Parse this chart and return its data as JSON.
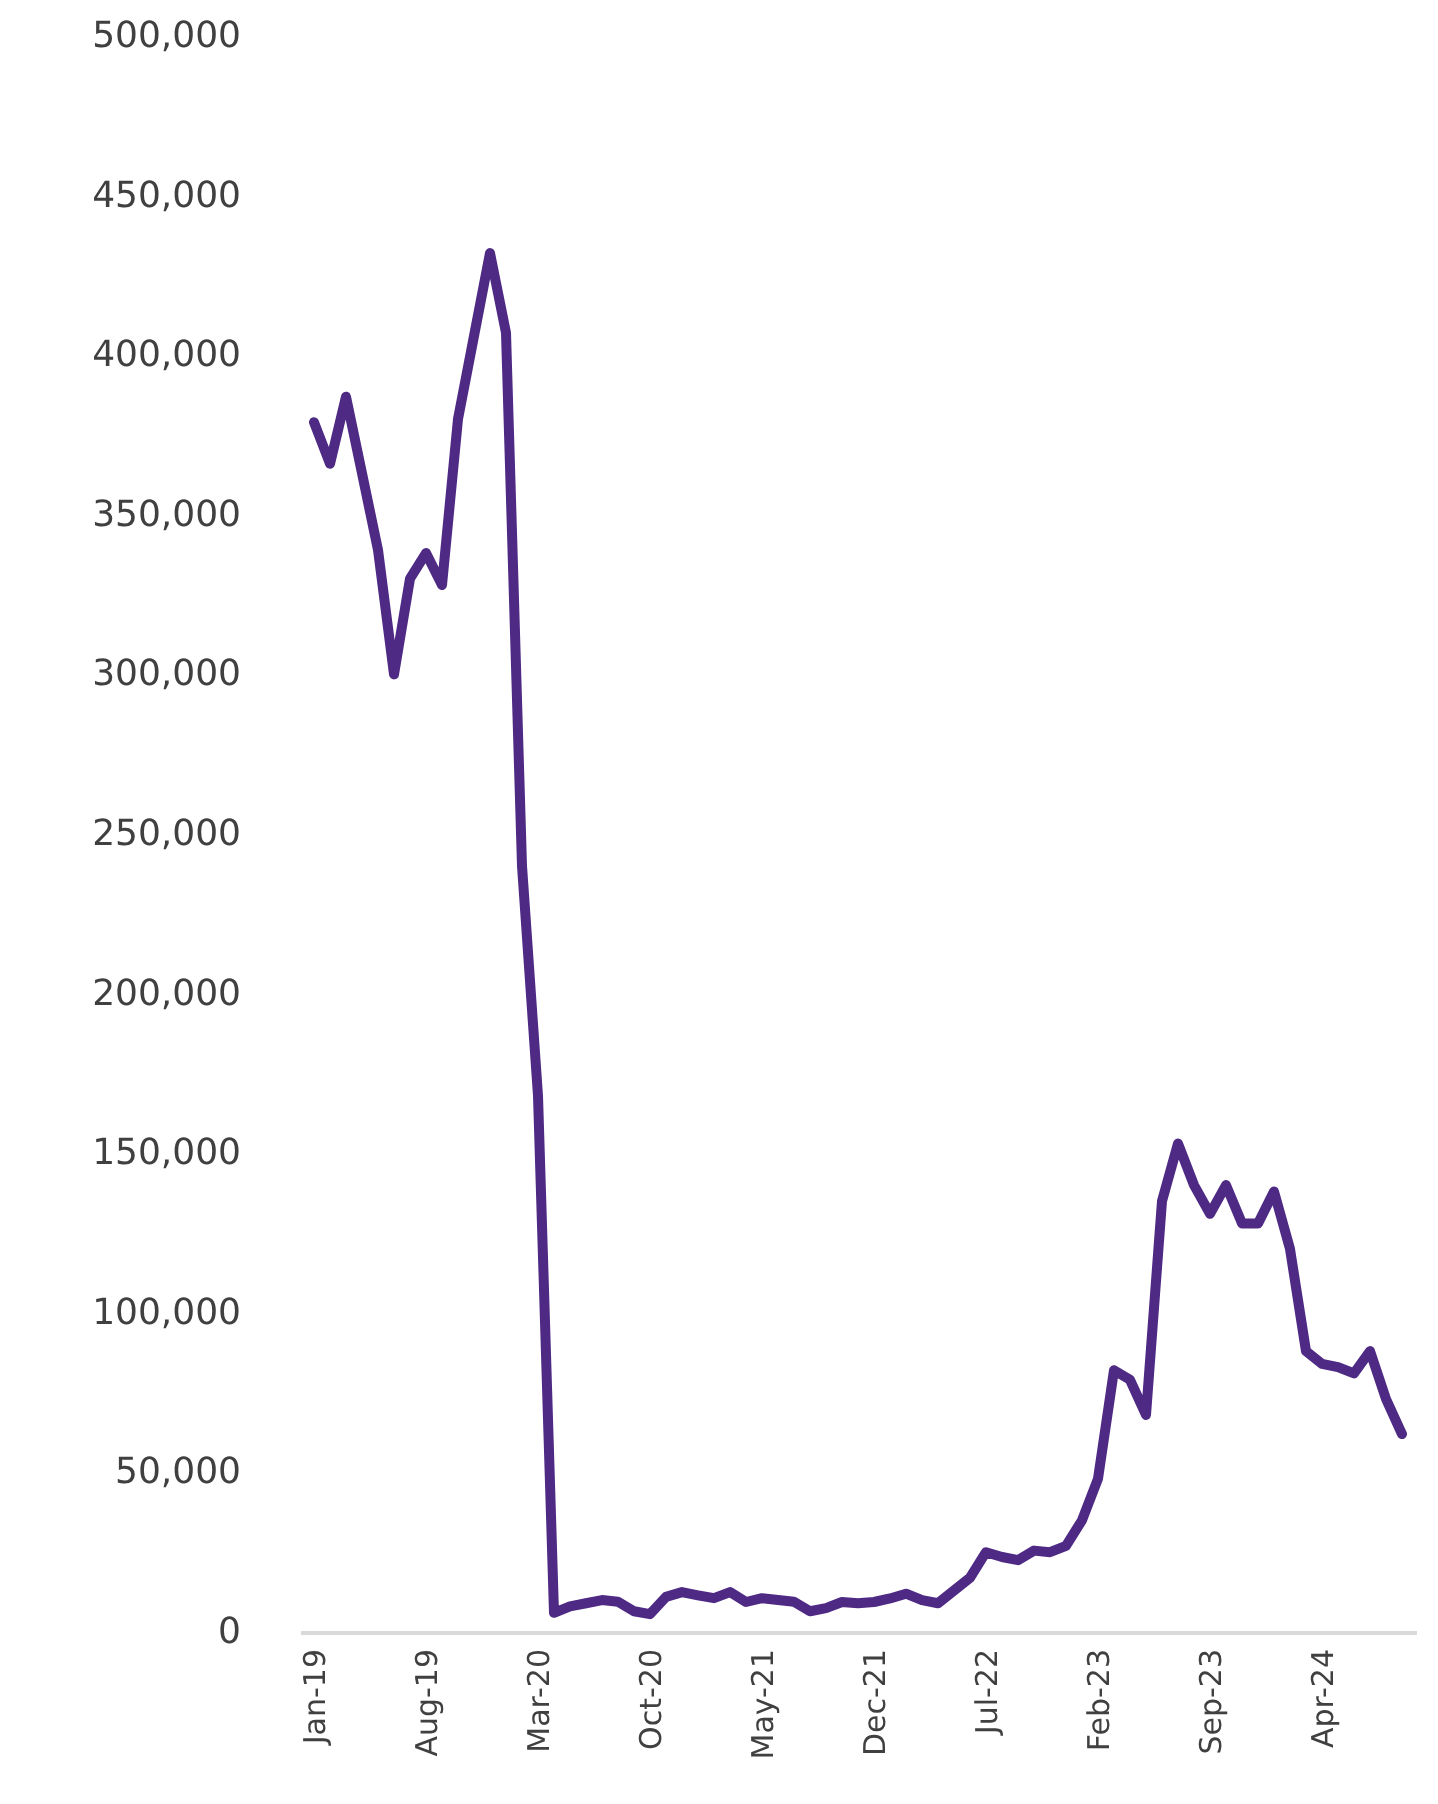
{
  "chart_data": {
    "type": "line",
    "categories": [
      "Jan-19",
      null,
      null,
      null,
      null,
      null,
      null,
      "Aug-19",
      null,
      null,
      null,
      null,
      null,
      null,
      "Mar-20",
      null,
      null,
      null,
      null,
      null,
      null,
      "Oct-20",
      null,
      null,
      null,
      null,
      null,
      null,
      "May-21",
      null,
      null,
      null,
      null,
      null,
      null,
      "Dec-21",
      null,
      null,
      null,
      null,
      null,
      null,
      "Jul-22",
      null,
      null,
      null,
      null,
      null,
      null,
      "Feb-23",
      null,
      null,
      null,
      null,
      null,
      null,
      "Sep-23",
      null,
      null,
      null,
      null,
      null,
      null,
      "Apr-24",
      null,
      null,
      null,
      null,
      null
    ],
    "series": [
      {
        "color": "#4e2a84",
        "values": [
          379000,
          366000,
          387000,
          363000,
          339000,
          300000,
          330000,
          338000,
          328000,
          380000,
          406000,
          432000,
          407000,
          240000,
          168000,
          6000,
          8000,
          9000,
          10000,
          9500,
          6500,
          5600,
          11000,
          12500,
          11500,
          10600,
          12500,
          9400,
          10600,
          10000,
          9500,
          6500,
          7500,
          9400,
          9000,
          9400,
          10500,
          12000,
          10000,
          9000,
          13000,
          17000,
          25000,
          23500,
          22500,
          25500,
          25000,
          27000,
          35000,
          48000,
          82000,
          79000,
          68000,
          135000,
          153000,
          140000,
          131000,
          140000,
          128000,
          128000,
          138000,
          120000,
          88000,
          84000,
          83000,
          81000,
          88000,
          73000,
          62000
        ]
      }
    ],
    "ylim": [
      0,
      500000
    ],
    "yticks": [
      0,
      {
        "value": 50000,
        "label": "50,000"
      },
      {
        "value": 100000,
        "label": "100,000"
      },
      {
        "value": 150000,
        "label": "150,000"
      },
      {
        "value": 200000,
        "label": "200,000"
      },
      {
        "value": 250000,
        "label": "250,000"
      },
      {
        "value": 300000,
        "label": "300,000"
      },
      {
        "value": 350000,
        "label": "350,000"
      },
      {
        "value": 400000,
        "label": "400,000"
      },
      {
        "value": 450000,
        "label": "450,000"
      },
      {
        "value": 500000,
        "label": "500,000"
      }
    ],
    "grid": false,
    "legend": false,
    "marker": "none",
    "line_style": "solid"
  }
}
